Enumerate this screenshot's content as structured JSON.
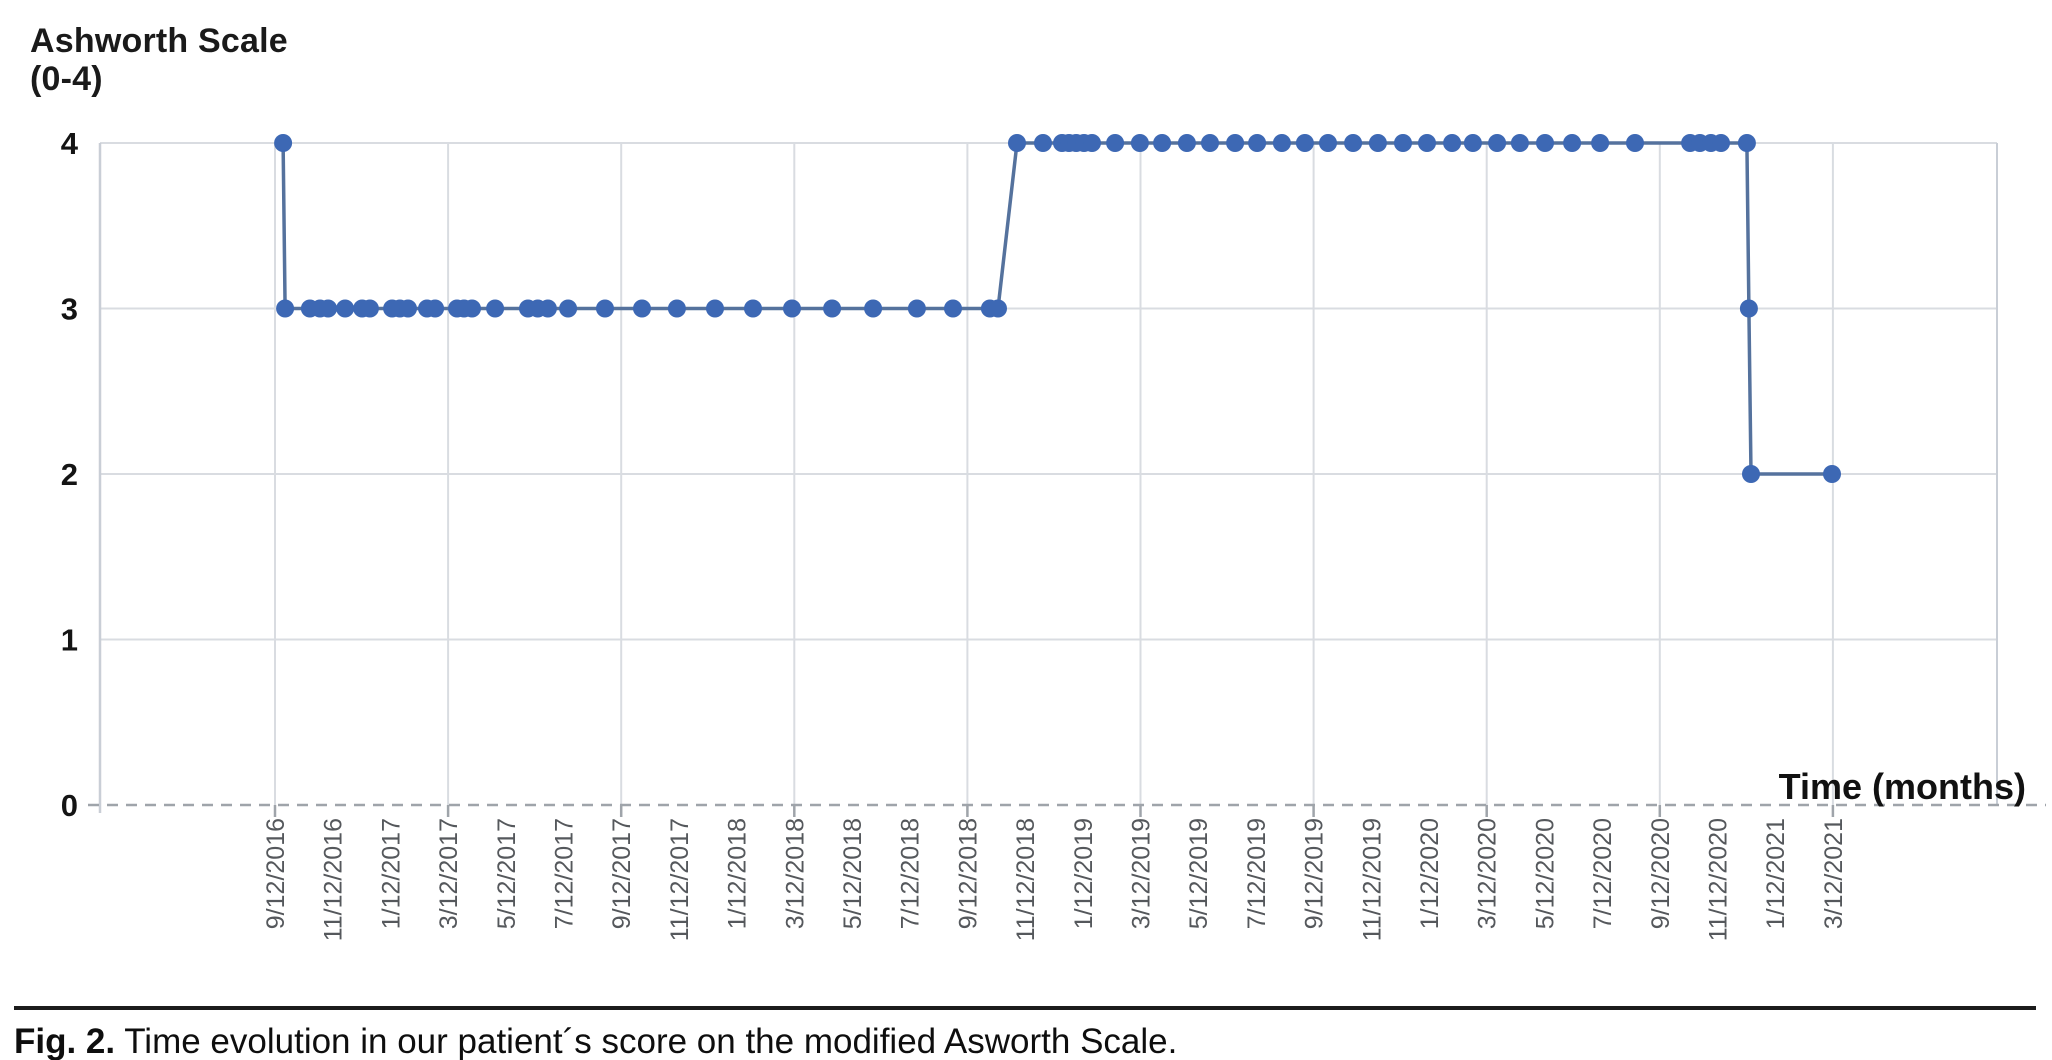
{
  "figure": {
    "caption_label": "Fig. 2.",
    "caption_text": " Time evolution in our patient´s score on the modified Asworth Scale."
  },
  "chart_data": {
    "type": "line",
    "title": "Ashworth Scale",
    "title_line2": "(0-4)",
    "xlabel": "Time (months)",
    "x_unit": "months since first visit (9/12/2016), 2 months per tick",
    "x_tick_labels": [
      "9/12/2016",
      "11/12/2016",
      "1/12/2017",
      "3/12/2017",
      "5/12/2017",
      "7/12/2017",
      "9/12/2017",
      "11/12/2017",
      "1/12/2018",
      "3/12/2018",
      "5/12/2018",
      "7/12/2018",
      "9/12/2018",
      "11/12/2018",
      "1/12/2019",
      "3/12/2019",
      "5/12/2019",
      "7/12/2019",
      "9/12/2019",
      "11/12/2019",
      "1/12/2020",
      "3/12/2020",
      "5/12/2020",
      "7/12/2020",
      "9/12/2020",
      "11/12/2020",
      "1/12/2021",
      "3/12/2021"
    ],
    "x_tick_interval_months": 2,
    "y_ticks": [
      0,
      1,
      2,
      3,
      4
    ],
    "ylim": [
      0,
      4
    ],
    "grid": {
      "x_every_months": 6,
      "y_every_units": 1,
      "baseline_dashed": true
    },
    "legend": "none",
    "points": [
      [
        0.28,
        4
      ],
      [
        0.35,
        3
      ],
      [
        1.21,
        3
      ],
      [
        1.56,
        3
      ],
      [
        1.84,
        3
      ],
      [
        2.43,
        3
      ],
      [
        3.02,
        3
      ],
      [
        3.29,
        3
      ],
      [
        4.06,
        3
      ],
      [
        4.33,
        3
      ],
      [
        4.61,
        3
      ],
      [
        5.27,
        3
      ],
      [
        5.55,
        3
      ],
      [
        6.31,
        3
      ],
      [
        6.55,
        3
      ],
      [
        6.83,
        3
      ],
      [
        7.63,
        3
      ],
      [
        8.77,
        3
      ],
      [
        9.11,
        3
      ],
      [
        9.46,
        3
      ],
      [
        10.16,
        3
      ],
      [
        11.44,
        3
      ],
      [
        12.72,
        3
      ],
      [
        13.93,
        3
      ],
      [
        15.25,
        3
      ],
      [
        16.57,
        3
      ],
      [
        17.92,
        3
      ],
      [
        19.31,
        3
      ],
      [
        20.73,
        3
      ],
      [
        22.25,
        3
      ],
      [
        23.5,
        3
      ],
      [
        24.78,
        3
      ],
      [
        25.06,
        3
      ],
      [
        25.72,
        4
      ],
      [
        26.62,
        4
      ],
      [
        27.28,
        4
      ],
      [
        27.52,
        4
      ],
      [
        27.77,
        4
      ],
      [
        28.04,
        4
      ],
      [
        28.32,
        4
      ],
      [
        29.12,
        4
      ],
      [
        29.98,
        4
      ],
      [
        30.75,
        4
      ],
      [
        31.61,
        4
      ],
      [
        32.41,
        4
      ],
      [
        33.28,
        4
      ],
      [
        34.04,
        4
      ],
      [
        34.9,
        4
      ],
      [
        35.7,
        4
      ],
      [
        36.5,
        4
      ],
      [
        37.37,
        4
      ],
      [
        38.23,
        4
      ],
      [
        39.1,
        4
      ],
      [
        39.93,
        4
      ],
      [
        40.8,
        4
      ],
      [
        41.52,
        4
      ],
      [
        42.36,
        4
      ],
      [
        43.15,
        4
      ],
      [
        44.02,
        4
      ],
      [
        44.96,
        4
      ],
      [
        45.93,
        4
      ],
      [
        47.14,
        4
      ],
      [
        49.05,
        4
      ],
      [
        49.39,
        4
      ],
      [
        49.77,
        4
      ],
      [
        50.12,
        4
      ],
      [
        51.02,
        4
      ],
      [
        51.09,
        3
      ],
      [
        51.16,
        2
      ],
      [
        53.97,
        2
      ]
    ],
    "colors": {
      "dot": "#3d68b4",
      "line": "#55729d",
      "grid": "#d9dce1",
      "plot_border": "#c9ced6",
      "baseline": "#9fa4aa",
      "tick_label": "#55585c",
      "axis_label": "#141414"
    }
  }
}
